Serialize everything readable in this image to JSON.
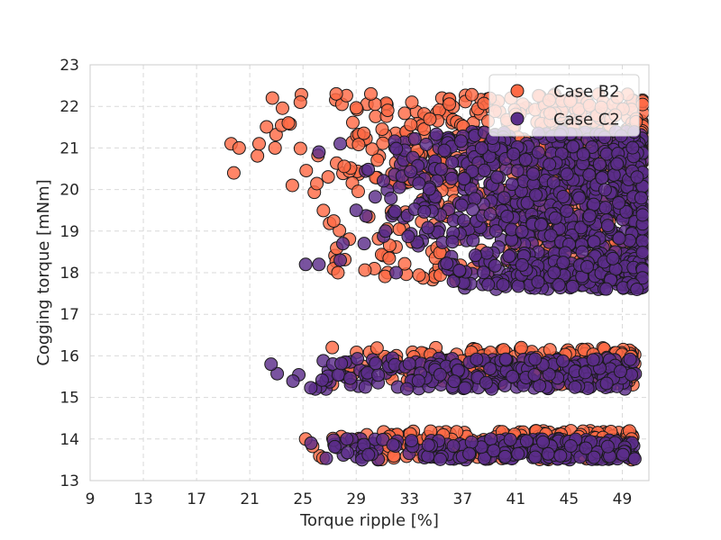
{
  "chart_data": {
    "type": "scatter",
    "title": "",
    "xlabel": "Torque ripple [%]",
    "ylabel": "Cogging torque [mNm]",
    "xlim": [
      9,
      51
    ],
    "ylim": [
      13,
      23
    ],
    "xticks": [
      9,
      13,
      17,
      21,
      25,
      29,
      33,
      37,
      41,
      45,
      49
    ],
    "yticks": [
      13,
      14,
      15,
      16,
      17,
      18,
      19,
      20,
      21,
      22,
      23
    ],
    "grid": true,
    "legend_position": "top-right",
    "colors": {
      "b2_fill": "#ff6a45",
      "c2_fill": "#5b2d8a",
      "marker_edge": "#1a1a1a",
      "grid": "#d9d9d9",
      "frame": "#cccccc"
    },
    "series": [
      {
        "name": "Case B2",
        "color": "#ff6a45",
        "clusters": [
          {
            "x": [
              19.2,
              51
            ],
            "y": [
              20.1,
              22.3
            ],
            "count": 180
          },
          {
            "x": [
              25,
              51
            ],
            "y": [
              17.8,
              22.3
            ],
            "count": 520
          },
          {
            "x": [
              26,
              50
            ],
            "y": [
              15.3,
              16.2
            ],
            "count": 260
          },
          {
            "x": [
              25.5,
              50
            ],
            "y": [
              13.5,
              14.2
            ],
            "count": 240
          }
        ],
        "points": [
          {
            "x": 22.7,
            "y": 22.2
          },
          {
            "x": 24.8,
            "y": 22.1
          },
          {
            "x": 19.6,
            "y": 21.1
          },
          {
            "x": 20.2,
            "y": 21.0
          },
          {
            "x": 21.7,
            "y": 21.1
          },
          {
            "x": 19.8,
            "y": 20.4
          },
          {
            "x": 24.2,
            "y": 20.1
          },
          {
            "x": 23.9,
            "y": 21.6
          },
          {
            "x": 22.9,
            "y": 21.0
          },
          {
            "x": 27.2,
            "y": 16.2
          },
          {
            "x": 27.5,
            "y": 22.3
          },
          {
            "x": 30.1,
            "y": 22.3
          },
          {
            "x": 25.2,
            "y": 14.0
          },
          {
            "x": 29.8,
            "y": 14.1
          },
          {
            "x": 49.7,
            "y": 14.0
          }
        ]
      },
      {
        "name": "Case C2",
        "color": "#5b2d8a",
        "clusters": [
          {
            "x": [
              29,
              51
            ],
            "y": [
              18.6,
              21.4
            ],
            "count": 650
          },
          {
            "x": [
              35,
              51
            ],
            "y": [
              17.6,
              18.5
            ],
            "count": 300
          },
          {
            "x": [
              22.5,
              50
            ],
            "y": [
              15.2,
              15.95
            ],
            "count": 280
          },
          {
            "x": [
              25.5,
              50
            ],
            "y": [
              13.5,
              14.0
            ],
            "count": 260
          }
        ],
        "points": [
          {
            "x": 22.6,
            "y": 15.8
          },
          {
            "x": 25.2,
            "y": 18.2
          },
          {
            "x": 26.2,
            "y": 18.2
          },
          {
            "x": 27.8,
            "y": 18.3
          },
          {
            "x": 28.0,
            "y": 18.7
          },
          {
            "x": 29.0,
            "y": 19.5
          },
          {
            "x": 26.2,
            "y": 20.9
          },
          {
            "x": 27.8,
            "y": 21.1
          },
          {
            "x": 29.6,
            "y": 18.7
          },
          {
            "x": 25.6,
            "y": 13.9
          },
          {
            "x": 28.3,
            "y": 14.0
          },
          {
            "x": 31.2,
            "y": 19.0
          },
          {
            "x": 32.0,
            "y": 18.0
          },
          {
            "x": 50.1,
            "y": 17.6
          }
        ]
      }
    ]
  }
}
